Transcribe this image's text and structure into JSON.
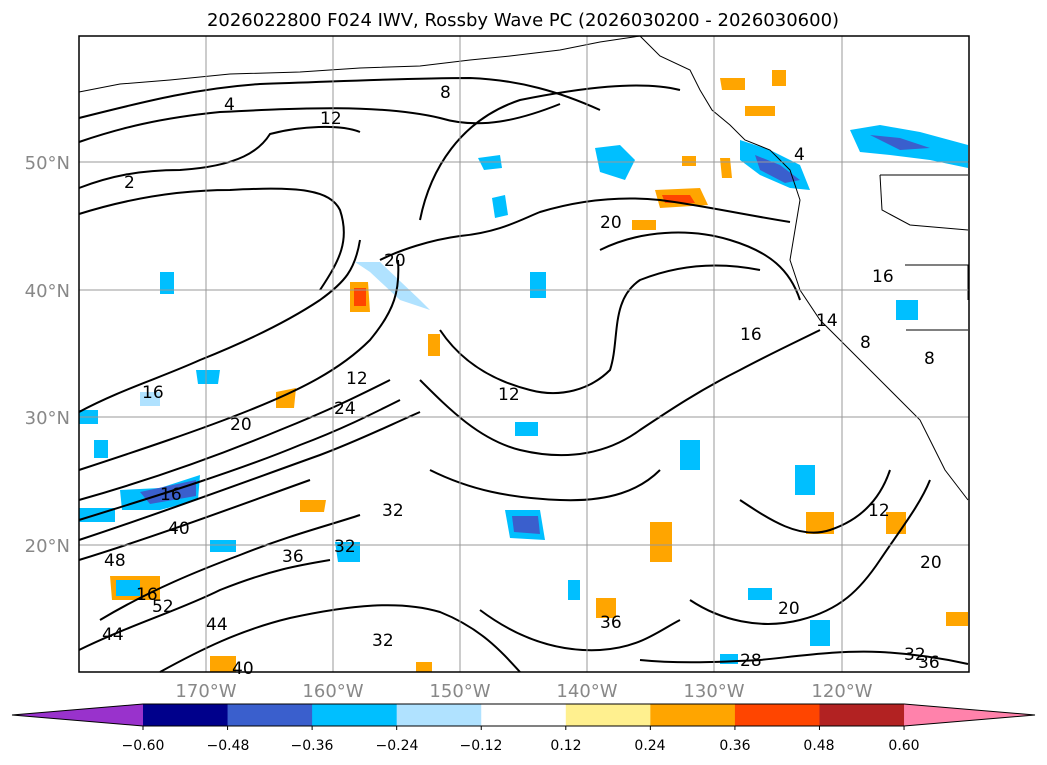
{
  "title": "2026022800 F024 IWV, Rossby Wave PC (2026030200 - 2026030600)",
  "lat_labels": [
    "50°N",
    "40°N",
    "30°N",
    "20°N"
  ],
  "lon_labels": [
    "170°W",
    "160°W",
    "150°W",
    "140°W",
    "130°W",
    "120°W"
  ],
  "colorbar": {
    "ticks": [
      "−0.60",
      "−0.48",
      "−0.36",
      "−0.24",
      "−0.12",
      "0.12",
      "0.24",
      "0.36",
      "0.48",
      "0.60"
    ],
    "colors": [
      "#9932cc",
      "#00008b",
      "#3a5fcd",
      "#00bfff",
      "#b0e2ff",
      "#ffffff",
      "#fff08f",
      "#ffa500",
      "#ff4500",
      "#b22222",
      "#ff82ab"
    ]
  },
  "contour_labels": [
    "4",
    "8",
    "12",
    "2",
    "20",
    "20",
    "16",
    "12",
    "16",
    "16",
    "24",
    "20",
    "12",
    "32",
    "36",
    "32",
    "40",
    "48",
    "16",
    "44",
    "52",
    "44",
    "40",
    "32",
    "36",
    "28",
    "20",
    "32",
    "36",
    "12",
    "20",
    "8",
    "8",
    "4",
    "16",
    "14"
  ]
}
